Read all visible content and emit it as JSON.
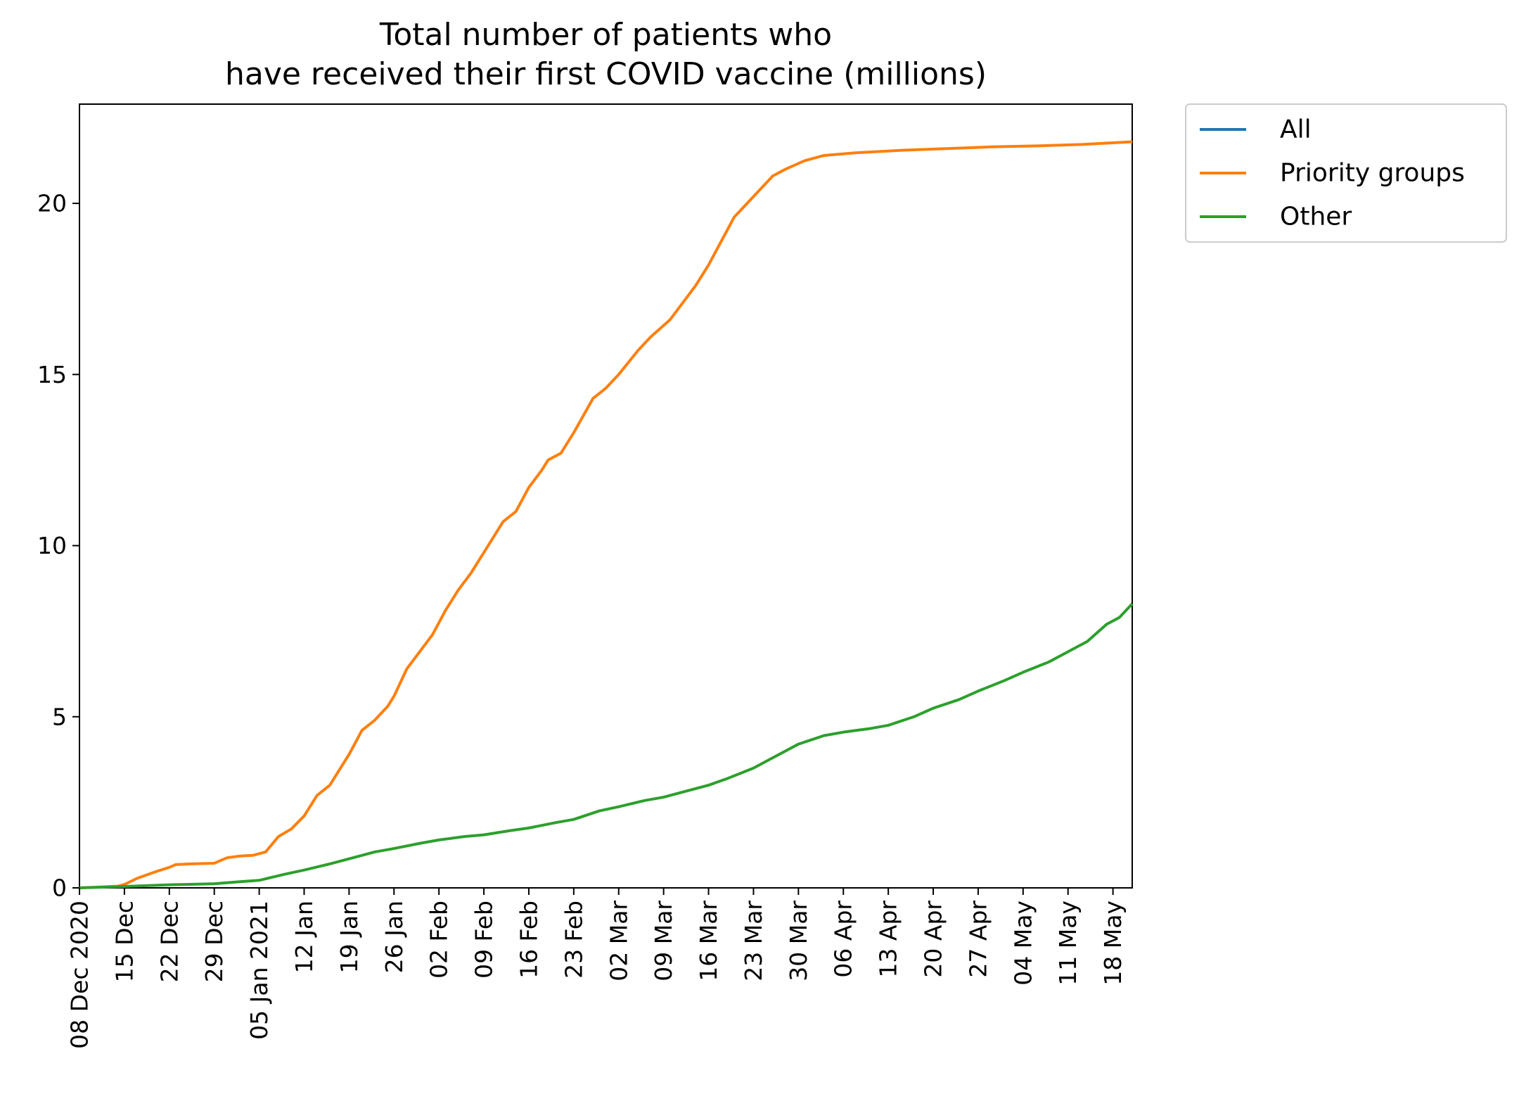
{
  "chart_data": {
    "type": "line",
    "title": [
      "Total number of patients who",
      "have received their first COVID vaccine (millions)"
    ],
    "xlabel": "",
    "ylabel": "",
    "xlim": [
      "2020-12-08",
      "2021-05-21"
    ],
    "ylim": [
      0,
      22.9
    ],
    "yticks": [
      0,
      5,
      10,
      15,
      20
    ],
    "xticks": [
      {
        "date": "2020-12-08",
        "label": "08 Dec 2020"
      },
      {
        "date": "2020-12-15",
        "label": "15 Dec"
      },
      {
        "date": "2020-12-22",
        "label": "22 Dec"
      },
      {
        "date": "2020-12-29",
        "label": "29 Dec"
      },
      {
        "date": "2021-01-05",
        "label": "05 Jan 2021"
      },
      {
        "date": "2021-01-12",
        "label": "12 Jan"
      },
      {
        "date": "2021-01-19",
        "label": "19 Jan"
      },
      {
        "date": "2021-01-26",
        "label": "26 Jan"
      },
      {
        "date": "2021-02-02",
        "label": "02 Feb"
      },
      {
        "date": "2021-02-09",
        "label": "09 Feb"
      },
      {
        "date": "2021-02-16",
        "label": "16 Feb"
      },
      {
        "date": "2021-02-23",
        "label": "23 Feb"
      },
      {
        "date": "2021-03-02",
        "label": "02 Mar"
      },
      {
        "date": "2021-03-09",
        "label": "09 Mar"
      },
      {
        "date": "2021-03-16",
        "label": "16 Mar"
      },
      {
        "date": "2021-03-23",
        "label": "23 Mar"
      },
      {
        "date": "2021-03-30",
        "label": "30 Mar"
      },
      {
        "date": "2021-04-06",
        "label": "06 Apr"
      },
      {
        "date": "2021-04-13",
        "label": "13 Apr"
      },
      {
        "date": "2021-04-20",
        "label": "20 Apr"
      },
      {
        "date": "2021-04-27",
        "label": "27 Apr"
      },
      {
        "date": "2021-05-04",
        "label": "04 May"
      },
      {
        "date": "2021-05-11",
        "label": "11 May"
      },
      {
        "date": "2021-05-18",
        "label": "18 May"
      }
    ],
    "grid": false,
    "legend": {
      "placement": "outside-top-right"
    },
    "series": [
      {
        "name": "All",
        "color": "#1f77b4",
        "points": []
      },
      {
        "name": "Priority groups",
        "color": "#ff7f0e",
        "points": [
          [
            "2020-12-08",
            0.0
          ],
          [
            "2020-12-14",
            0.05
          ],
          [
            "2020-12-15",
            0.1
          ],
          [
            "2020-12-17",
            0.28
          ],
          [
            "2020-12-20",
            0.48
          ],
          [
            "2020-12-22",
            0.6
          ],
          [
            "2020-12-23",
            0.68
          ],
          [
            "2020-12-25",
            0.7
          ],
          [
            "2020-12-29",
            0.72
          ],
          [
            "2020-12-31",
            0.88
          ],
          [
            "2021-01-02",
            0.93
          ],
          [
            "2021-01-04",
            0.95
          ],
          [
            "2021-01-06",
            1.05
          ],
          [
            "2021-01-08",
            1.5
          ],
          [
            "2021-01-10",
            1.72
          ],
          [
            "2021-01-12",
            2.1
          ],
          [
            "2021-01-14",
            2.7
          ],
          [
            "2021-01-16",
            3.0
          ],
          [
            "2021-01-18",
            3.6
          ],
          [
            "2021-01-19",
            3.9
          ],
          [
            "2021-01-21",
            4.6
          ],
          [
            "2021-01-23",
            4.9
          ],
          [
            "2021-01-25",
            5.3
          ],
          [
            "2021-01-26",
            5.6
          ],
          [
            "2021-01-28",
            6.4
          ],
          [
            "2021-01-30",
            6.9
          ],
          [
            "2021-02-01",
            7.4
          ],
          [
            "2021-02-03",
            8.1
          ],
          [
            "2021-02-05",
            8.7
          ],
          [
            "2021-02-07",
            9.2
          ],
          [
            "2021-02-09",
            9.8
          ],
          [
            "2021-02-12",
            10.7
          ],
          [
            "2021-02-14",
            11.0
          ],
          [
            "2021-02-16",
            11.7
          ],
          [
            "2021-02-18",
            12.2
          ],
          [
            "2021-02-19",
            12.5
          ],
          [
            "2021-02-21",
            12.7
          ],
          [
            "2021-02-23",
            13.3
          ],
          [
            "2021-02-26",
            14.3
          ],
          [
            "2021-02-28",
            14.6
          ],
          [
            "2021-03-02",
            15.0
          ],
          [
            "2021-03-05",
            15.7
          ],
          [
            "2021-03-07",
            16.1
          ],
          [
            "2021-03-10",
            16.6
          ],
          [
            "2021-03-12",
            17.1
          ],
          [
            "2021-03-14",
            17.6
          ],
          [
            "2021-03-16",
            18.2
          ],
          [
            "2021-03-18",
            18.9
          ],
          [
            "2021-03-20",
            19.6
          ],
          [
            "2021-03-22",
            20.0
          ],
          [
            "2021-03-24",
            20.4
          ],
          [
            "2021-03-26",
            20.8
          ],
          [
            "2021-03-28",
            21.0
          ],
          [
            "2021-03-31",
            21.25
          ],
          [
            "2021-04-03",
            21.4
          ],
          [
            "2021-04-08",
            21.48
          ],
          [
            "2021-04-15",
            21.55
          ],
          [
            "2021-04-22",
            21.6
          ],
          [
            "2021-04-29",
            21.65
          ],
          [
            "2021-05-06",
            21.68
          ],
          [
            "2021-05-13",
            21.72
          ],
          [
            "2021-05-21",
            21.8
          ]
        ]
      },
      {
        "name": "Other",
        "color": "#2ca02c",
        "points": [
          [
            "2020-12-08",
            0.0
          ],
          [
            "2020-12-15",
            0.04
          ],
          [
            "2020-12-22",
            0.09
          ],
          [
            "2020-12-29",
            0.12
          ],
          [
            "2021-01-02",
            0.18
          ],
          [
            "2021-01-05",
            0.22
          ],
          [
            "2021-01-09",
            0.4
          ],
          [
            "2021-01-12",
            0.52
          ],
          [
            "2021-01-16",
            0.7
          ],
          [
            "2021-01-19",
            0.85
          ],
          [
            "2021-01-23",
            1.05
          ],
          [
            "2021-01-26",
            1.15
          ],
          [
            "2021-01-30",
            1.3
          ],
          [
            "2021-02-02",
            1.4
          ],
          [
            "2021-02-06",
            1.5
          ],
          [
            "2021-02-09",
            1.55
          ],
          [
            "2021-02-13",
            1.67
          ],
          [
            "2021-02-16",
            1.75
          ],
          [
            "2021-02-20",
            1.9
          ],
          [
            "2021-02-23",
            2.0
          ],
          [
            "2021-02-27",
            2.25
          ],
          [
            "2021-03-02",
            2.37
          ],
          [
            "2021-03-06",
            2.55
          ],
          [
            "2021-03-09",
            2.65
          ],
          [
            "2021-03-13",
            2.85
          ],
          [
            "2021-03-16",
            3.0
          ],
          [
            "2021-03-19",
            3.2
          ],
          [
            "2021-03-23",
            3.5
          ],
          [
            "2021-03-26",
            3.8
          ],
          [
            "2021-03-30",
            4.2
          ],
          [
            "2021-04-03",
            4.45
          ],
          [
            "2021-04-06",
            4.55
          ],
          [
            "2021-04-10",
            4.65
          ],
          [
            "2021-04-13",
            4.75
          ],
          [
            "2021-04-17",
            5.0
          ],
          [
            "2021-04-20",
            5.25
          ],
          [
            "2021-04-24",
            5.5
          ],
          [
            "2021-04-27",
            5.75
          ],
          [
            "2021-05-01",
            6.05
          ],
          [
            "2021-05-04",
            6.3
          ],
          [
            "2021-05-08",
            6.6
          ],
          [
            "2021-05-11",
            6.9
          ],
          [
            "2021-05-14",
            7.2
          ],
          [
            "2021-05-17",
            7.7
          ],
          [
            "2021-05-19",
            7.9
          ],
          [
            "2021-05-21",
            8.3
          ]
        ]
      }
    ]
  }
}
